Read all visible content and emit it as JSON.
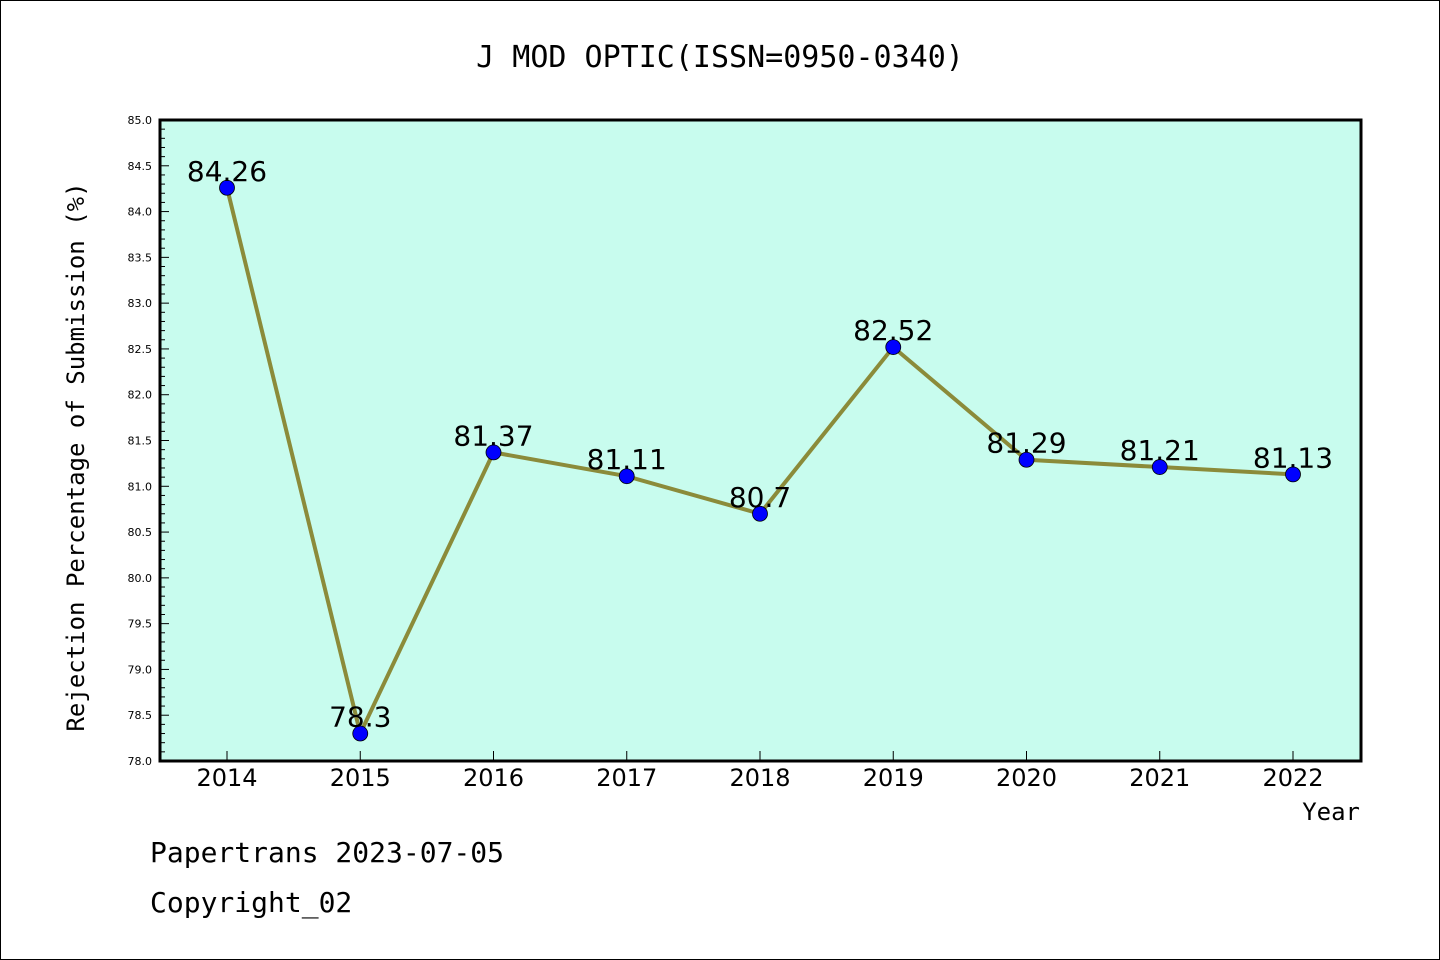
{
  "chart_data": {
    "type": "line",
    "title": "J MOD OPTIC(ISSN=0950-0340)",
    "xlabel": "Year",
    "ylabel": "Rejection Percentage of Submission (%)",
    "categories": [
      "2014",
      "2015",
      "2016",
      "2017",
      "2018",
      "2019",
      "2020",
      "2021",
      "2022"
    ],
    "series": [
      {
        "values": [
          84.26,
          78.3,
          81.37,
          81.11,
          80.7,
          82.52,
          81.29,
          81.21,
          81.13
        ],
        "labels": [
          "84.26",
          "78.3",
          "81.37",
          "81.11",
          "80.7",
          "82.52",
          "81.29",
          "81.21",
          "81.13"
        ],
        "line_color": "#8b8b3a",
        "marker_color": "#0000ff"
      }
    ],
    "ylim": [
      78.0,
      85.0
    ],
    "yticks": [
      "78.0",
      "78.5",
      "79.0",
      "79.5",
      "80.0",
      "80.5",
      "81.0",
      "81.5",
      "82.0",
      "82.5",
      "83.0",
      "83.5",
      "84.0",
      "84.5",
      "85.0"
    ],
    "plot_background": "#c8fcee",
    "grid": false,
    "legend": "none"
  },
  "footer": {
    "line1": "Papertrans 2023-07-05",
    "line2": "Copyright_02"
  }
}
